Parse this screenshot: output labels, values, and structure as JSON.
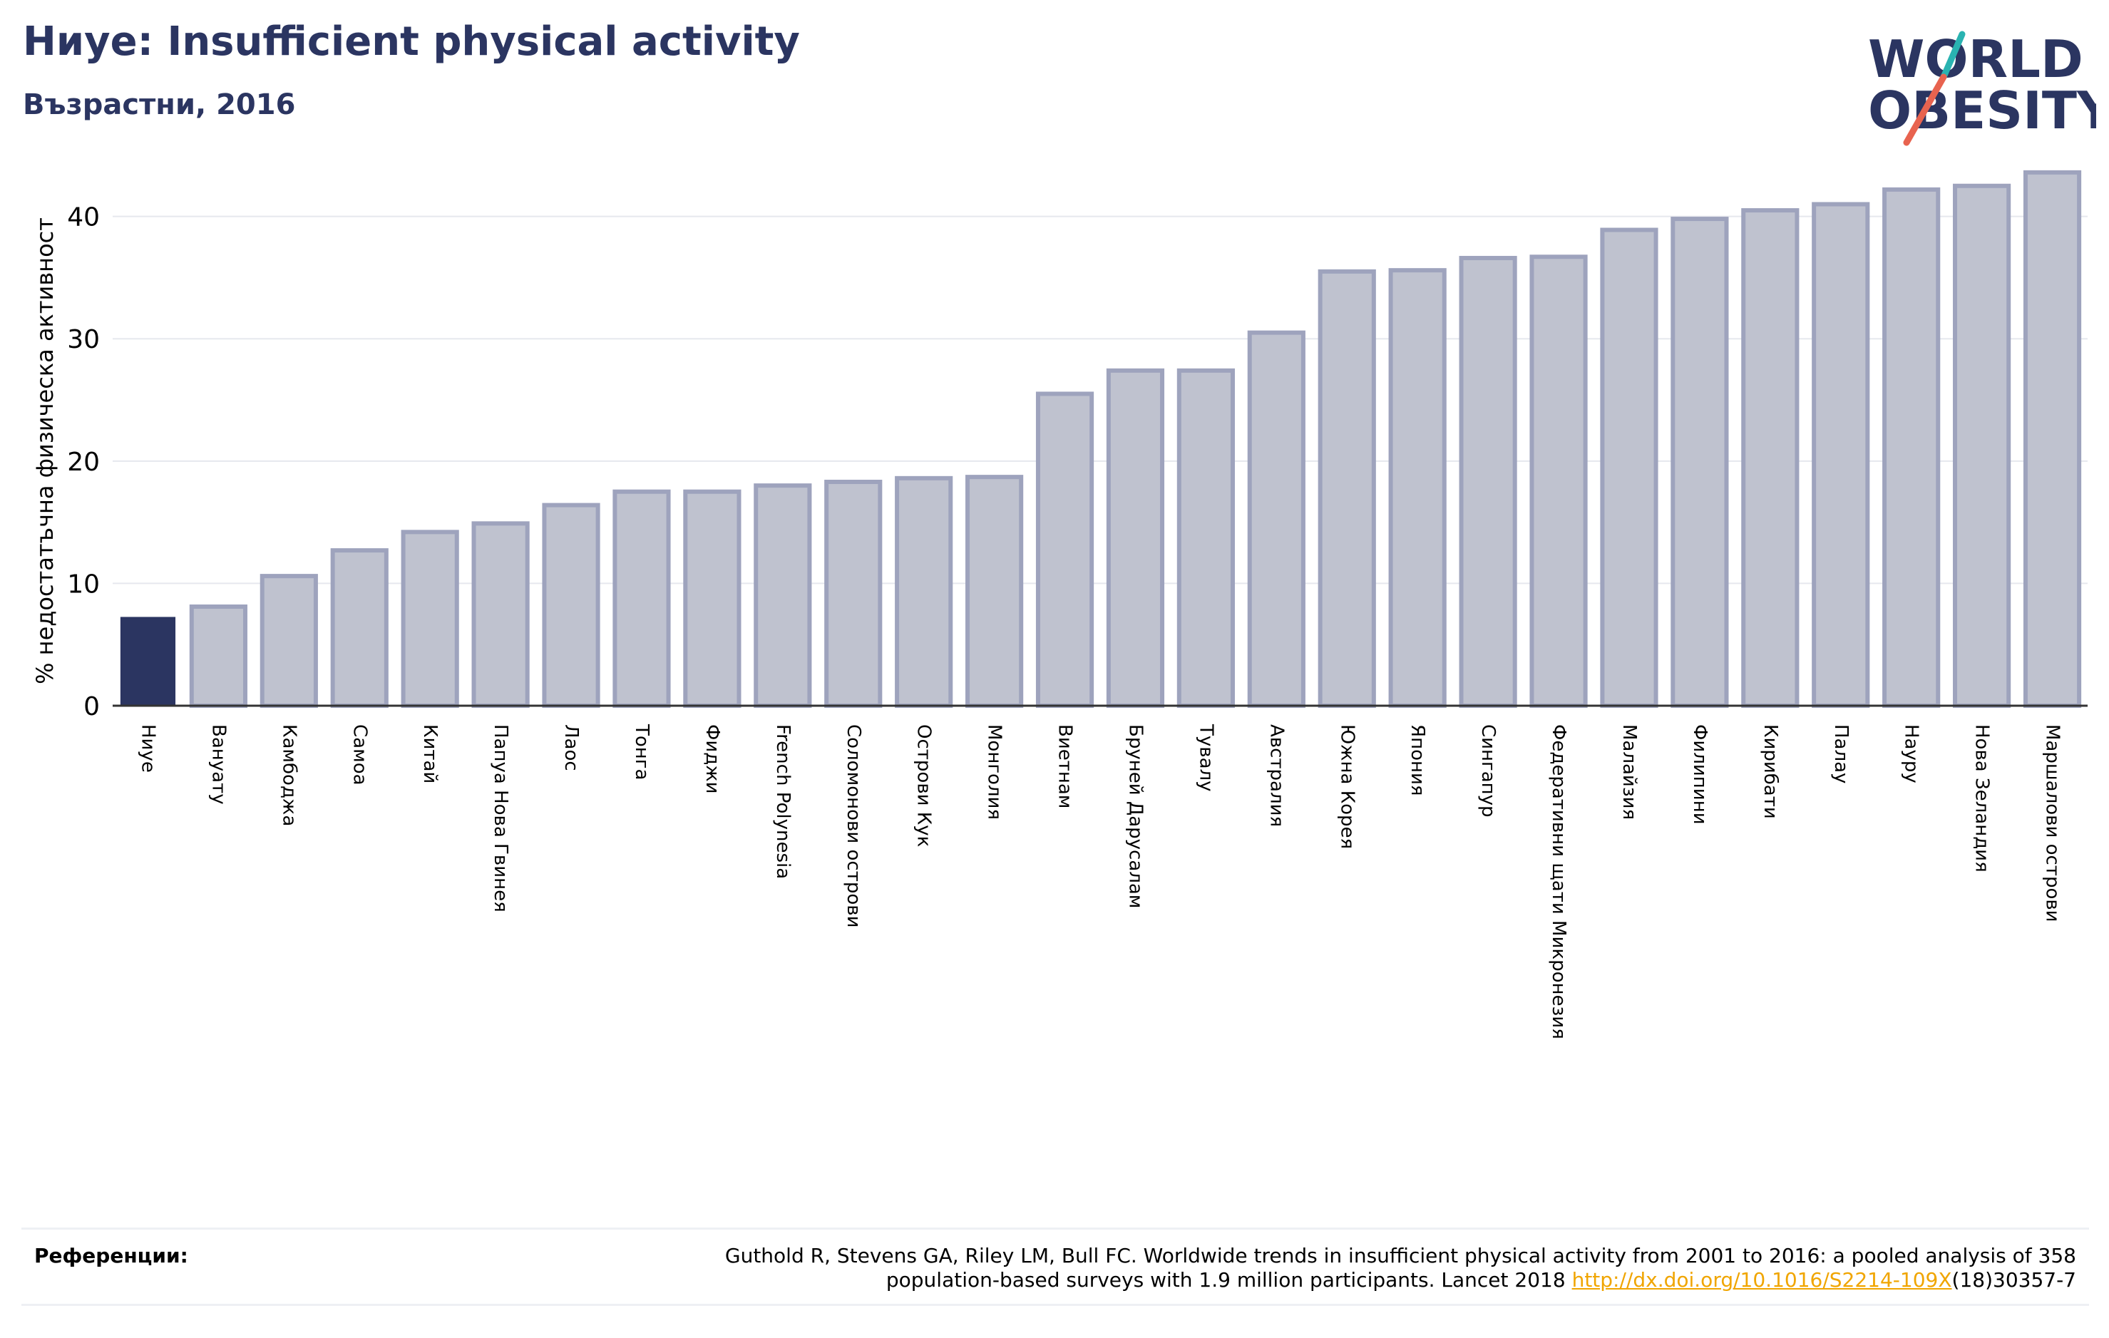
{
  "header": {
    "title": "Ниуе: Insufficient physical activity",
    "subtitle": "Възрастни, 2016"
  },
  "logo": {
    "line1": "WORLD",
    "line2": "OBESITY",
    "colors": {
      "text": "#2b3561",
      "slash_teal": "#2ab3b1",
      "slash_red": "#e8634f"
    }
  },
  "chart_data": {
    "type": "bar",
    "title": "Ниуе: Insufficient physical activity",
    "subtitle": "Възрастни, 2016",
    "xlabel": "",
    "ylabel": "% недостатъчна физическа активност",
    "ylim": [
      0,
      44
    ],
    "yticks": [
      0,
      10,
      20,
      30,
      40
    ],
    "grid": true,
    "highlight_index": 0,
    "colors": {
      "highlight": "#2b3561",
      "bar_fill": "#bfc2cf",
      "bar_stroke": "#9ea3bd",
      "grid": "#e6e8ee"
    },
    "categories": [
      "Ниуе",
      "Вануату",
      "Камбоджа",
      "Самоа",
      "Китай",
      "Папуа Нова Гвинея",
      "Лаос",
      "Тонга",
      "Фиджи",
      "French Polynesia",
      "Соломонови острови",
      "Острови Кук",
      "Монголия",
      "Виетнам",
      "Бруней Дарусалам",
      "Тувалу",
      "Австралия",
      "Южна Корея",
      "Япония",
      "Сингапур",
      "Федеративни щати Микронезия",
      "Малайзия",
      "Филипини",
      "Кирибати",
      "Палау",
      "Науру",
      "Нова Зеландия",
      "Маршалови острови"
    ],
    "values": [
      7.2,
      8.1,
      10.6,
      12.7,
      14.2,
      14.9,
      16.4,
      17.5,
      17.5,
      18.0,
      18.3,
      18.6,
      18.7,
      25.5,
      27.4,
      27.4,
      30.5,
      35.5,
      35.6,
      36.6,
      36.7,
      38.9,
      39.8,
      40.5,
      41.0,
      42.2,
      42.5,
      43.6
    ]
  },
  "references": {
    "label": "Референции:",
    "text_line1": "Guthold R, Stevens GA, Riley LM, Bull FC. Worldwide trends in insufficient physical activity from 2001 to 2016: a pooled analysis of 358",
    "text_line2_pre": "population-based surveys with 1.9 million participants. Lancet 2018 ",
    "link": "http://dx.doi.org/10.1016/S2214-109X",
    "text_line2_post": "(18)30357-7"
  }
}
